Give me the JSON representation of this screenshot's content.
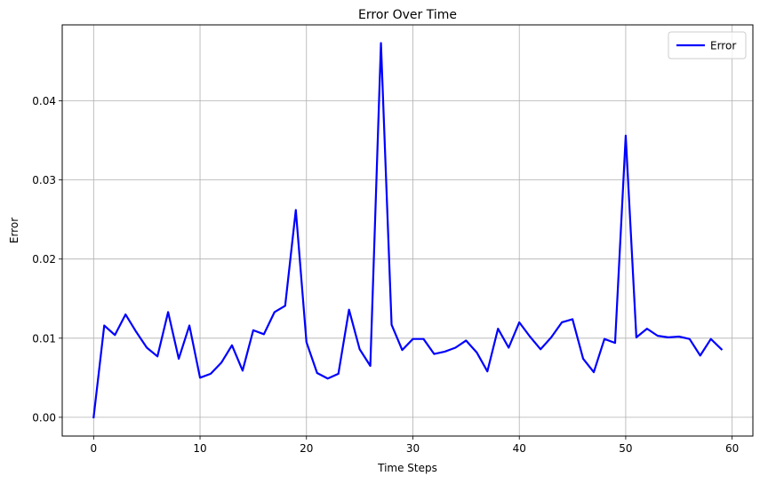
{
  "chart_data": {
    "type": "line",
    "title": "Error Over Time",
    "xlabel": "Time Steps",
    "ylabel": "Error",
    "xlim": [
      -2.95,
      61.95
    ],
    "ylim": [
      -0.00237,
      0.0496
    ],
    "x_ticks": [
      0,
      10,
      20,
      30,
      40,
      50,
      60
    ],
    "x_tick_labels": [
      "0",
      "10",
      "20",
      "30",
      "40",
      "50",
      "60"
    ],
    "y_ticks": [
      0.0,
      0.01,
      0.02,
      0.03,
      0.04
    ],
    "y_tick_labels": [
      "0.00",
      "0.01",
      "0.02",
      "0.03",
      "0.04"
    ],
    "grid": true,
    "legend_position": "top-right",
    "series": [
      {
        "name": "Error",
        "color": "#0000ff",
        "x": [
          0,
          1,
          2,
          3,
          4,
          5,
          6,
          7,
          8,
          9,
          10,
          11,
          12,
          13,
          14,
          15,
          16,
          17,
          18,
          19,
          20,
          21,
          22,
          23,
          24,
          25,
          26,
          27,
          28,
          29,
          30,
          31,
          32,
          33,
          34,
          35,
          36,
          37,
          38,
          39,
          40,
          41,
          42,
          43,
          44,
          45,
          46,
          47,
          48,
          49,
          50,
          51,
          52,
          53,
          54,
          55,
          56,
          57,
          58,
          59
        ],
        "values": [
          0.0,
          0.0116,
          0.0104,
          0.013,
          0.0108,
          0.0088,
          0.0077,
          0.0133,
          0.0074,
          0.0116,
          0.005,
          0.0055,
          0.0069,
          0.0091,
          0.0059,
          0.011,
          0.0105,
          0.0133,
          0.0141,
          0.0262,
          0.0095,
          0.0056,
          0.0049,
          0.0055,
          0.0136,
          0.0086,
          0.0065,
          0.0473,
          0.0117,
          0.0085,
          0.0099,
          0.0099,
          0.008,
          0.0083,
          0.0088,
          0.0097,
          0.0082,
          0.0058,
          0.0112,
          0.0088,
          0.012,
          0.0102,
          0.0086,
          0.0101,
          0.012,
          0.0124,
          0.0074,
          0.0057,
          0.0099,
          0.0094,
          0.0356,
          0.0101,
          0.0112,
          0.0103,
          0.0101,
          0.0102,
          0.0099,
          0.0078,
          0.0099,
          0.0086
        ]
      }
    ]
  }
}
